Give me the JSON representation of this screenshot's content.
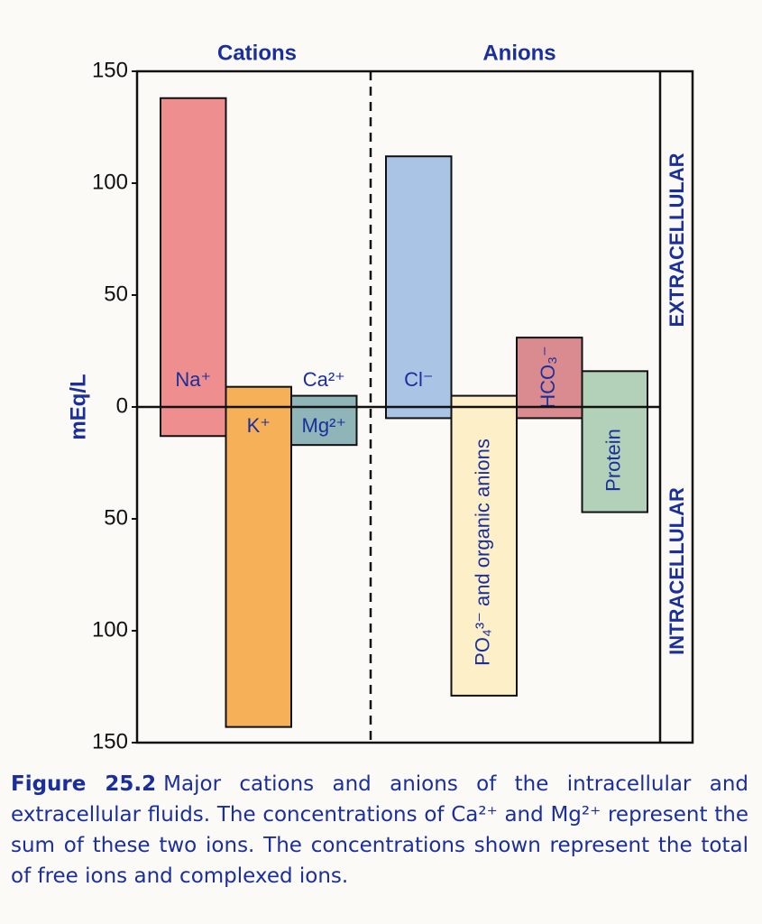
{
  "chart_data": {
    "type": "bar",
    "groups": [
      "Cations",
      "Anions"
    ],
    "y_label": "mEq/L",
    "categories": [
      [
        "Na⁺"
      ],
      [
        "K⁺"
      ],
      [
        "Ca²⁺",
        "Mg²⁺"
      ],
      [
        "Cl⁻"
      ],
      [
        "PO₄³⁻ and organic anions"
      ],
      [
        "HCO₃⁻"
      ],
      [
        "Protein"
      ]
    ],
    "colors": [
      "#ef8e8e",
      "#f6b057",
      "#8fb5b8",
      "#a9c4e4",
      "#fdf0c8",
      "#d98b8f",
      "#b3d1b8"
    ],
    "series": [
      {
        "name": "EXTRACELLULAR",
        "values": [
          138,
          9,
          5,
          112,
          5,
          31,
          16
        ]
      },
      {
        "name": "INTRACELLULAR",
        "values": [
          -13,
          -143,
          -17,
          -5,
          -129,
          -5,
          -47
        ]
      }
    ],
    "ylim": [
      -150,
      150
    ],
    "yticks": [
      {
        "value": -150,
        "label": "150"
      },
      {
        "value": -100,
        "label": "100"
      },
      {
        "value": -50,
        "label": "50"
      },
      0,
      50,
      100,
      150
    ]
  },
  "caption": {
    "label": "Figure 25.2",
    "text": "Major cations and anions of the intracellular and extracellular fluids. The concentrations of Ca²⁺ and Mg²⁺ represent the sum of these two ions. The concentrations shown represent the total of free ions and complexed ions."
  }
}
